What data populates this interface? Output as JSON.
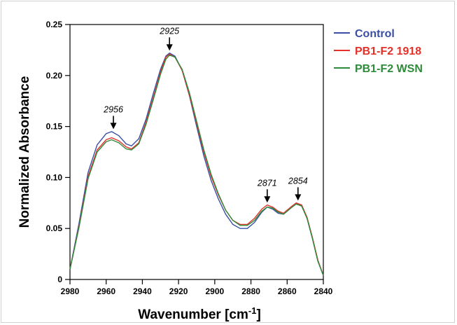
{
  "chart_data": {
    "type": "line",
    "xlabel": "Wavenumber [cm-1]",
    "ylabel": "Normalized Absorbance",
    "xlim": [
      2980,
      2840
    ],
    "ylim": [
      0,
      0.25
    ],
    "x_reversed": true,
    "x_ticks": [
      "2980",
      "2960",
      "2940",
      "2920",
      "2900",
      "2880",
      "2860",
      "2840"
    ],
    "y_ticks": [
      "0",
      "0.05",
      "0.10",
      "0.15",
      "0.20",
      "0.25"
    ],
    "x_tick_values": [
      2980,
      2960,
      2940,
      2920,
      2900,
      2880,
      2860,
      2840
    ],
    "y_tick_values": [
      0,
      0.05,
      0.1,
      0.15,
      0.2,
      0.25
    ],
    "legend_position": "top-right",
    "grid": false,
    "series": [
      {
        "name": "Control",
        "color": "#3a4fa3",
        "points": [
          [
            2980,
            0.01
          ],
          [
            2975,
            0.055
          ],
          [
            2970,
            0.105
          ],
          [
            2965,
            0.132
          ],
          [
            2960,
            0.143
          ],
          [
            2957,
            0.145
          ],
          [
            2953,
            0.141
          ],
          [
            2949,
            0.133
          ],
          [
            2946,
            0.131
          ],
          [
            2942,
            0.138
          ],
          [
            2938,
            0.157
          ],
          [
            2934,
            0.182
          ],
          [
            2930,
            0.206
          ],
          [
            2927,
            0.219
          ],
          [
            2925,
            0.222
          ],
          [
            2922,
            0.219
          ],
          [
            2918,
            0.205
          ],
          [
            2914,
            0.18
          ],
          [
            2910,
            0.15
          ],
          [
            2906,
            0.121
          ],
          [
            2902,
            0.097
          ],
          [
            2898,
            0.079
          ],
          [
            2894,
            0.064
          ],
          [
            2890,
            0.054
          ],
          [
            2886,
            0.05
          ],
          [
            2882,
            0.05
          ],
          [
            2878,
            0.056
          ],
          [
            2874,
            0.066
          ],
          [
            2871,
            0.071
          ],
          [
            2868,
            0.069
          ],
          [
            2865,
            0.065
          ],
          [
            2862,
            0.064
          ],
          [
            2858,
            0.07
          ],
          [
            2855,
            0.075
          ],
          [
            2852,
            0.073
          ],
          [
            2849,
            0.06
          ],
          [
            2846,
            0.04
          ],
          [
            2843,
            0.018
          ],
          [
            2840,
            0.004
          ]
        ]
      },
      {
        "name": "PB1-F2 1918",
        "color": "#e3312a",
        "points": [
          [
            2980,
            0.01
          ],
          [
            2975,
            0.052
          ],
          [
            2970,
            0.101
          ],
          [
            2965,
            0.127
          ],
          [
            2960,
            0.137
          ],
          [
            2957,
            0.139
          ],
          [
            2953,
            0.136
          ],
          [
            2949,
            0.13
          ],
          [
            2946,
            0.128
          ],
          [
            2942,
            0.134
          ],
          [
            2938,
            0.154
          ],
          [
            2934,
            0.178
          ],
          [
            2930,
            0.203
          ],
          [
            2927,
            0.218
          ],
          [
            2925,
            0.221
          ],
          [
            2922,
            0.218
          ],
          [
            2918,
            0.205
          ],
          [
            2914,
            0.181
          ],
          [
            2910,
            0.153
          ],
          [
            2906,
            0.125
          ],
          [
            2902,
            0.101
          ],
          [
            2898,
            0.083
          ],
          [
            2894,
            0.068
          ],
          [
            2890,
            0.058
          ],
          [
            2886,
            0.054
          ],
          [
            2882,
            0.054
          ],
          [
            2878,
            0.06
          ],
          [
            2874,
            0.069
          ],
          [
            2871,
            0.073
          ],
          [
            2868,
            0.071
          ],
          [
            2865,
            0.067
          ],
          [
            2862,
            0.065
          ],
          [
            2858,
            0.071
          ],
          [
            2855,
            0.075
          ],
          [
            2852,
            0.073
          ],
          [
            2849,
            0.061
          ],
          [
            2846,
            0.041
          ],
          [
            2843,
            0.019
          ],
          [
            2840,
            0.004
          ]
        ]
      },
      {
        "name": "PB1-F2 WSN",
        "color": "#2e8b3a",
        "points": [
          [
            2980,
            0.01
          ],
          [
            2975,
            0.051
          ],
          [
            2970,
            0.099
          ],
          [
            2965,
            0.125
          ],
          [
            2960,
            0.135
          ],
          [
            2957,
            0.137
          ],
          [
            2953,
            0.134
          ],
          [
            2949,
            0.128
          ],
          [
            2946,
            0.127
          ],
          [
            2942,
            0.133
          ],
          [
            2938,
            0.152
          ],
          [
            2934,
            0.176
          ],
          [
            2930,
            0.201
          ],
          [
            2927,
            0.216
          ],
          [
            2925,
            0.22
          ],
          [
            2922,
            0.218
          ],
          [
            2918,
            0.206
          ],
          [
            2914,
            0.183
          ],
          [
            2910,
            0.155
          ],
          [
            2906,
            0.127
          ],
          [
            2902,
            0.103
          ],
          [
            2898,
            0.084
          ],
          [
            2894,
            0.068
          ],
          [
            2890,
            0.058
          ],
          [
            2886,
            0.053
          ],
          [
            2882,
            0.053
          ],
          [
            2878,
            0.058
          ],
          [
            2874,
            0.067
          ],
          [
            2871,
            0.071
          ],
          [
            2868,
            0.07
          ],
          [
            2865,
            0.066
          ],
          [
            2862,
            0.064
          ],
          [
            2858,
            0.07
          ],
          [
            2855,
            0.074
          ],
          [
            2852,
            0.072
          ],
          [
            2849,
            0.06
          ],
          [
            2846,
            0.04
          ],
          [
            2843,
            0.018
          ],
          [
            2840,
            0.004
          ]
        ]
      }
    ],
    "annotations": [
      {
        "label": "2956",
        "x": 2956,
        "y": 0.146
      },
      {
        "label": "2925",
        "x": 2925,
        "y": 0.223
      },
      {
        "label": "2871",
        "x": 2871,
        "y": 0.074
      },
      {
        "label": "2854",
        "x": 2854,
        "y": 0.076
      }
    ]
  }
}
